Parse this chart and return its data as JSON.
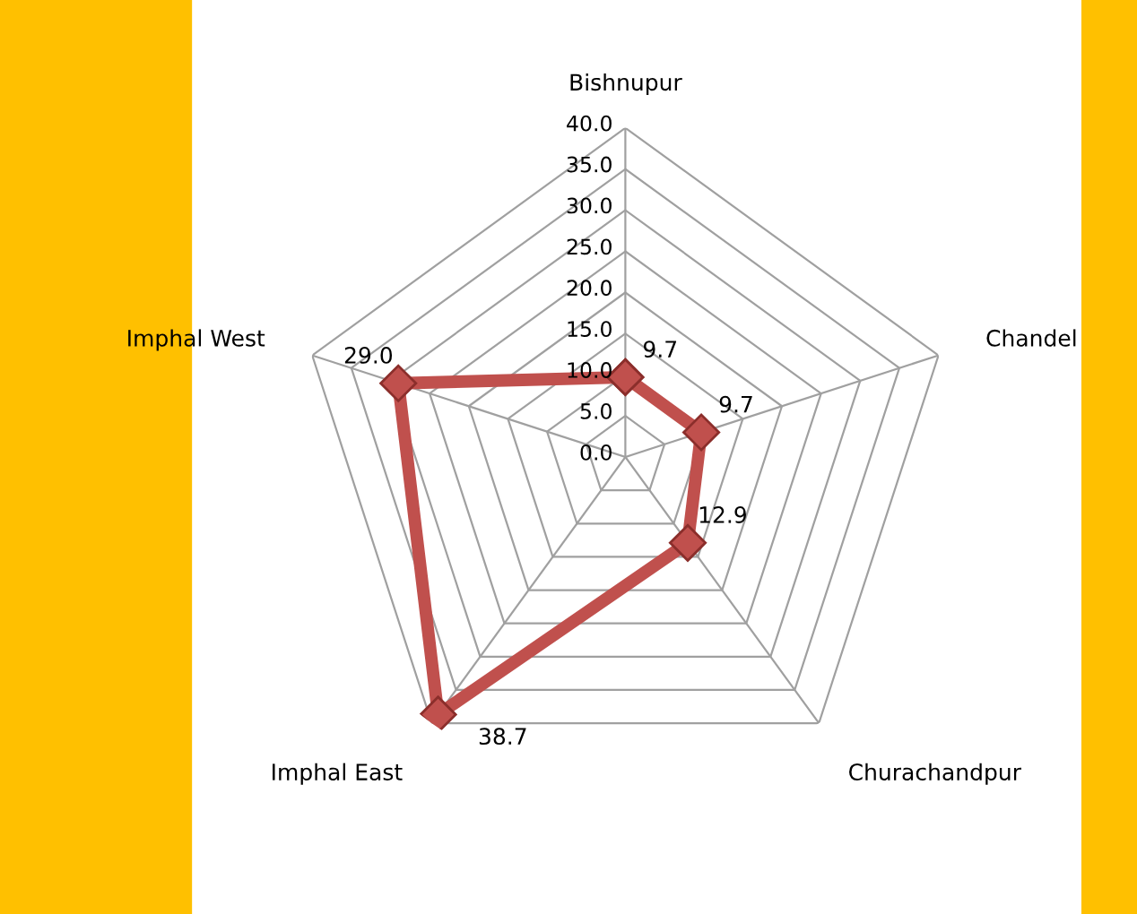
{
  "chart_data": {
    "type": "radar",
    "categories": [
      "Bishnupur",
      "Chandel",
      "Churachandpur",
      "Imphal East",
      "Imphal West"
    ],
    "series": [
      {
        "color": "#c0504d",
        "values": [
          9.7,
          9.7,
          12.9,
          38.7,
          29.0
        ],
        "value_labels": [
          "9.7",
          "9.7",
          "12.9",
          "38.7",
          "29.0"
        ]
      }
    ],
    "ylim": [
      0,
      40
    ],
    "yticks": [
      {
        "value": 0,
        "label": "0.0"
      },
      {
        "value": 5,
        "label": "5.0"
      },
      {
        "value": 10,
        "label": "10.0"
      },
      {
        "value": 15,
        "label": "15.0"
      },
      {
        "value": 20,
        "label": "20.0"
      },
      {
        "value": 25,
        "label": "25.0"
      },
      {
        "value": 30,
        "label": "30.0"
      },
      {
        "value": 35,
        "label": "35.0"
      },
      {
        "value": 40,
        "label": "40.0"
      }
    ],
    "grid": true,
    "marker": "diamond",
    "line_style": "solid"
  }
}
